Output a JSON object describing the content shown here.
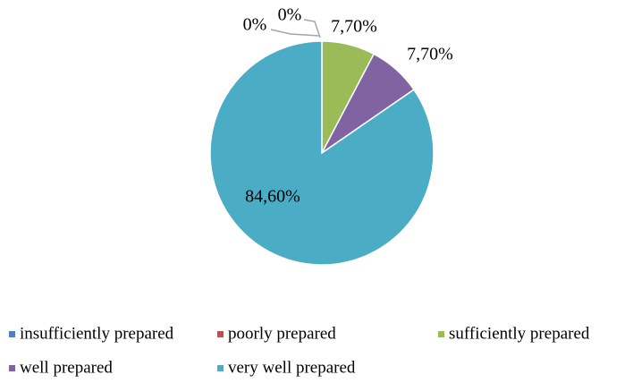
{
  "chart_data": {
    "type": "pie",
    "categories": [
      "insufficiently prepared",
      "poorly prepared",
      "sufficiently prepared",
      "well prepared",
      "very well prepared"
    ],
    "values": [
      0,
      0,
      7.7,
      7.7,
      84.6
    ],
    "value_labels": [
      "0%",
      "0%",
      "7,70%",
      "7,70%",
      "84,60%"
    ],
    "colors": [
      "#4f81bd",
      "#c0504d",
      "#9bbb59",
      "#8064a2",
      "#4bacc6"
    ],
    "legend": "bottom"
  }
}
